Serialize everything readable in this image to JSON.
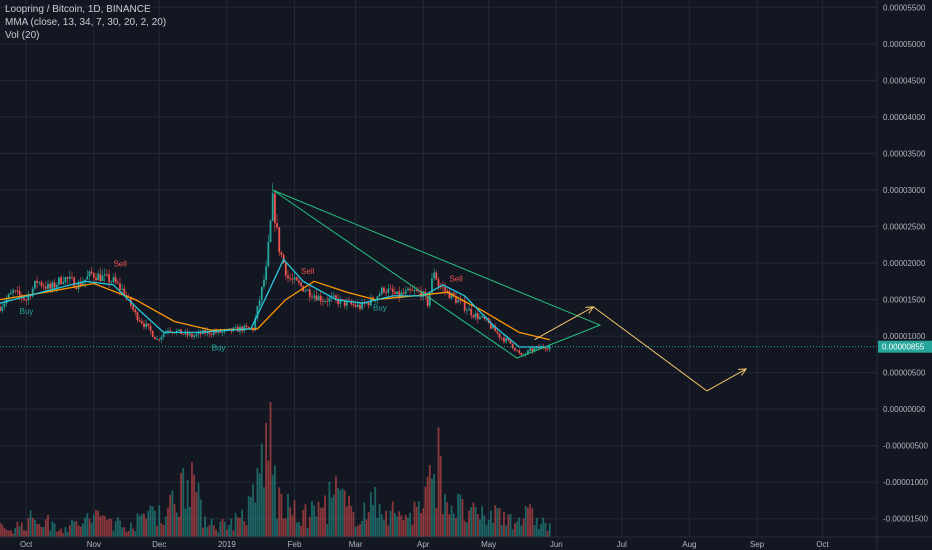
{
  "legend": {
    "title": "Loopring / Bitcoin, 1D, BINANCE",
    "mma": "MMA (close, 13, 34, 7, 30, 20, 2, 20)",
    "vol": "Vol (20)"
  },
  "colors": {
    "background": "#131722",
    "grid": "#242838",
    "up": "#26a69a",
    "down": "#ef5350",
    "ma_fast": "#26c6da",
    "ma_slow": "#ff9800",
    "triangle": "#26c281",
    "projection": "#f5c66b",
    "current_price": "#26a69a",
    "buy_label": "#26a69a",
    "sell_label": "#ef5350"
  },
  "chart_data": {
    "type": "candlestick",
    "y_ticks": [
      "0.00005500",
      "0.00005000",
      "0.00004500",
      "0.00004000",
      "0.00003500",
      "0.00003000",
      "0.00002500",
      "0.00002000",
      "0.00001500",
      "0.00001000",
      "0.00000500",
      "0.00000000",
      "-0.00000500",
      "-0.00001000",
      "-0.00001500"
    ],
    "y_tick_values": [
      5.5e-05,
      5e-05,
      4.5e-05,
      4e-05,
      3.5e-05,
      3e-05,
      2.5e-05,
      2e-05,
      1.5e-05,
      1e-05,
      5e-06,
      0,
      -5e-06,
      -1e-05,
      -1.5e-05
    ],
    "x_ticks": [
      "Oct",
      "Nov",
      "Dec",
      "2019",
      "Feb",
      "Mar",
      "Apr",
      "May",
      "Jun",
      "Jul",
      "Aug",
      "Sep",
      "Oct"
    ],
    "x_tick_dates": [
      "2018-10-01",
      "2018-11-01",
      "2018-12-01",
      "2019-01-01",
      "2019-02-01",
      "2019-03-01",
      "2019-04-01",
      "2019-05-01",
      "2019-06-01",
      "2019-07-01",
      "2019-08-01",
      "2019-09-01",
      "2019-10-01"
    ],
    "y_range": [
      -1.75e-05,
      5.6e-05
    ],
    "x_range": [
      "2018-09-19",
      "2019-10-26"
    ],
    "current_price": 8.55e-06,
    "current_price_label": "0.00000855",
    "close_path": [
      [
        "2018-09-19",
        1.4e-05
      ],
      [
        "2018-09-25",
        1.6e-05
      ],
      [
        "2018-10-01",
        1.5e-05
      ],
      [
        "2018-10-06",
        1.75e-05
      ],
      [
        "2018-10-12",
        1.65e-05
      ],
      [
        "2018-10-18",
        1.8e-05
      ],
      [
        "2018-10-25",
        1.7e-05
      ],
      [
        "2018-10-31",
        1.85e-05
      ],
      [
        "2018-11-05",
        1.8e-05
      ],
      [
        "2018-11-10",
        1.75e-05
      ],
      [
        "2018-11-15",
        1.6e-05
      ],
      [
        "2018-11-20",
        1.3e-05
      ],
      [
        "2018-11-26",
        1.1e-05
      ],
      [
        "2018-11-30",
        9.5e-06
      ],
      [
        "2018-12-05",
        1.1e-05
      ],
      [
        "2018-12-10",
        1.05e-05
      ],
      [
        "2018-12-16",
        1e-05
      ],
      [
        "2018-12-22",
        1.05e-05
      ],
      [
        "2018-12-30",
        1.05e-05
      ],
      [
        "2019-01-07",
        1.1e-05
      ],
      [
        "2019-01-13",
        1.1e-05
      ],
      [
        "2019-01-16",
        1.5e-05
      ],
      [
        "2019-01-19",
        1.9e-05
      ],
      [
        "2019-01-22",
        2.85e-05
      ],
      [
        "2019-01-25",
        2.2e-05
      ],
      [
        "2019-01-29",
        1.8e-05
      ],
      [
        "2019-02-03",
        1.7e-05
      ],
      [
        "2019-02-08",
        1.6e-05
      ],
      [
        "2019-02-14",
        1.5e-05
      ],
      [
        "2019-02-19",
        1.5e-05
      ],
      [
        "2019-02-24",
        1.45e-05
      ],
      [
        "2019-03-03",
        1.4e-05
      ],
      [
        "2019-03-09",
        1.5e-05
      ],
      [
        "2019-03-14",
        1.65e-05
      ],
      [
        "2019-03-20",
        1.55e-05
      ],
      [
        "2019-03-26",
        1.6e-05
      ],
      [
        "2019-03-31",
        1.6e-05
      ],
      [
        "2019-04-03",
        1.45e-05
      ],
      [
        "2019-04-06",
        1.9e-05
      ],
      [
        "2019-04-08",
        1.7e-05
      ],
      [
        "2019-04-12",
        1.6e-05
      ],
      [
        "2019-04-18",
        1.45e-05
      ],
      [
        "2019-04-24",
        1.3e-05
      ],
      [
        "2019-04-30",
        1.2e-05
      ],
      [
        "2019-05-06",
        1e-05
      ],
      [
        "2019-05-11",
        9e-06
      ],
      [
        "2019-05-16",
        7.2e-06
      ],
      [
        "2019-05-20",
        8e-06
      ],
      [
        "2019-05-25",
        8.5e-06
      ],
      [
        "2019-05-29",
        8.55e-06
      ]
    ],
    "ma_fast": [
      [
        "2018-09-19",
        1.45e-05
      ],
      [
        "2018-10-08",
        1.6e-05
      ],
      [
        "2018-10-28",
        1.75e-05
      ],
      [
        "2018-11-10",
        1.7e-05
      ],
      [
        "2018-11-22",
        1.35e-05
      ],
      [
        "2018-12-03",
        1.05e-05
      ],
      [
        "2018-12-18",
        1.05e-05
      ],
      [
        "2019-01-12",
        1.1e-05
      ],
      [
        "2019-01-20",
        1.6e-05
      ],
      [
        "2019-01-27",
        2.05e-05
      ],
      [
        "2019-02-05",
        1.75e-05
      ],
      [
        "2019-02-20",
        1.5e-05
      ],
      [
        "2019-03-04",
        1.45e-05
      ],
      [
        "2019-03-18",
        1.55e-05
      ],
      [
        "2019-04-01",
        1.55e-05
      ],
      [
        "2019-04-10",
        1.7e-05
      ],
      [
        "2019-04-20",
        1.55e-05
      ],
      [
        "2019-05-03",
        1.15e-05
      ],
      [
        "2019-05-15",
        8.5e-06
      ],
      [
        "2019-05-29",
        8.5e-06
      ]
    ],
    "ma_slow": [
      [
        "2018-09-19",
        1.5e-05
      ],
      [
        "2018-10-10",
        1.6e-05
      ],
      [
        "2018-11-01",
        1.72e-05
      ],
      [
        "2018-11-20",
        1.5e-05
      ],
      [
        "2018-12-08",
        1.2e-05
      ],
      [
        "2018-12-25",
        1.08e-05
      ],
      [
        "2019-01-15",
        1.1e-05
      ],
      [
        "2019-01-28",
        1.5e-05
      ],
      [
        "2019-02-10",
        1.75e-05
      ],
      [
        "2019-02-25",
        1.6e-05
      ],
      [
        "2019-03-10",
        1.5e-05
      ],
      [
        "2019-03-28",
        1.55e-05
      ],
      [
        "2019-04-12",
        1.6e-05
      ],
      [
        "2019-04-28",
        1.35e-05
      ],
      [
        "2019-05-15",
        1.05e-05
      ],
      [
        "2019-05-29",
        9.5e-06
      ]
    ],
    "volume": [
      [
        "2018-09-21",
        0.08
      ],
      [
        "2018-09-28",
        0.12
      ],
      [
        "2018-10-05",
        0.2
      ],
      [
        "2018-10-12",
        0.14
      ],
      [
        "2018-10-20",
        0.1
      ],
      [
        "2018-10-29",
        0.18
      ],
      [
        "2018-11-06",
        0.22
      ],
      [
        "2018-11-14",
        0.12
      ],
      [
        "2018-11-22",
        0.16
      ],
      [
        "2018-11-29",
        0.35
      ],
      [
        "2018-12-03",
        0.2
      ],
      [
        "2018-12-10",
        0.45
      ],
      [
        "2018-12-14",
        0.9
      ],
      [
        "2018-12-20",
        0.25
      ],
      [
        "2018-12-28",
        0.12
      ],
      [
        "2019-01-06",
        0.18
      ],
      [
        "2019-01-12",
        0.3
      ],
      [
        "2019-01-15",
        0.55
      ],
      [
        "2019-01-18",
        0.9
      ],
      [
        "2019-01-21",
        1.0
      ],
      [
        "2019-01-24",
        0.4
      ],
      [
        "2019-01-29",
        0.28
      ],
      [
        "2019-02-05",
        0.2
      ],
      [
        "2019-02-13",
        0.3
      ],
      [
        "2019-02-20",
        0.45
      ],
      [
        "2019-02-27",
        0.25
      ],
      [
        "2019-03-06",
        0.3
      ],
      [
        "2019-03-13",
        0.35
      ],
      [
        "2019-03-20",
        0.22
      ],
      [
        "2019-03-27",
        0.25
      ],
      [
        "2019-04-01",
        0.35
      ],
      [
        "2019-04-05",
        0.55
      ],
      [
        "2019-04-07",
        0.85
      ],
      [
        "2019-04-12",
        0.4
      ],
      [
        "2019-04-20",
        0.25
      ],
      [
        "2019-04-28",
        0.2
      ],
      [
        "2019-05-06",
        0.25
      ],
      [
        "2019-05-14",
        0.2
      ],
      [
        "2019-05-21",
        0.22
      ],
      [
        "2019-05-28",
        0.12
      ]
    ],
    "triangle": [
      [
        "2019-01-22",
        3e-05
      ],
      [
        "2019-06-21",
        1.15e-05
      ],
      [
        "2019-05-14",
        7e-06
      ]
    ],
    "projection": [
      [
        "2019-05-22",
        9.5e-06
      ],
      [
        "2019-06-18",
        1.4e-05
      ],
      [
        "2019-08-09",
        2.5e-06
      ],
      [
        "2019-08-27",
        5.5e-06
      ]
    ],
    "signals": [
      {
        "label": "Buy",
        "date": "2018-09-28",
        "value": 1.3e-05,
        "kind": "buy"
      },
      {
        "label": "Sell",
        "date": "2018-11-10",
        "value": 1.95e-05,
        "kind": "sell"
      },
      {
        "label": "Buy",
        "date": "2018-12-25",
        "value": 8e-06,
        "kind": "buy"
      },
      {
        "label": "Sell",
        "date": "2019-02-04",
        "value": 1.85e-05,
        "kind": "sell"
      },
      {
        "label": "Buy",
        "date": "2019-03-09",
        "value": 1.35e-05,
        "kind": "buy"
      },
      {
        "label": "Sell",
        "date": "2019-04-13",
        "value": 1.75e-05,
        "kind": "sell"
      }
    ]
  }
}
